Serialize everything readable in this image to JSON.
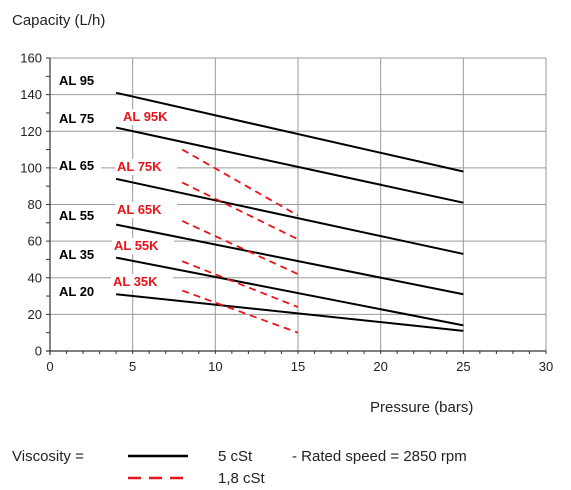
{
  "chart_data": {
    "type": "line",
    "ylabel": "Capacity (L/h)",
    "xlabel": "Pressure (bars)",
    "xlim": [
      0,
      30
    ],
    "ylim": [
      0,
      160
    ],
    "xticks": [
      0,
      5,
      10,
      15,
      20,
      25,
      30
    ],
    "yticks": [
      0,
      20,
      40,
      60,
      80,
      100,
      120,
      140,
      160
    ],
    "grid": true,
    "series": [
      {
        "name": "AL 95",
        "viscosity": "5 cSt",
        "color": "#000000",
        "style": "solid",
        "x": [
          4,
          25
        ],
        "y": [
          141,
          98
        ]
      },
      {
        "name": "AL 75",
        "viscosity": "5 cSt",
        "color": "#000000",
        "style": "solid",
        "x": [
          4,
          25
        ],
        "y": [
          122,
          81
        ]
      },
      {
        "name": "AL 65",
        "viscosity": "5 cSt",
        "color": "#000000",
        "style": "solid",
        "x": [
          4,
          25
        ],
        "y": [
          94,
          53
        ]
      },
      {
        "name": "AL 55",
        "viscosity": "5 cSt",
        "color": "#000000",
        "style": "solid",
        "x": [
          4,
          25
        ],
        "y": [
          69,
          31
        ]
      },
      {
        "name": "AL 35",
        "viscosity": "5 cSt",
        "color": "#000000",
        "style": "solid",
        "x": [
          4,
          25
        ],
        "y": [
          51,
          14
        ]
      },
      {
        "name": "AL 20",
        "viscosity": "5 cSt",
        "color": "#000000",
        "style": "solid",
        "x": [
          4,
          25
        ],
        "y": [
          31,
          11
        ]
      },
      {
        "name": "AL 95K",
        "viscosity": "1,8 cSt",
        "color": "#e8141b",
        "style": "dashed",
        "x": [
          8,
          15
        ],
        "y": [
          110,
          74
        ]
      },
      {
        "name": "AL 75K",
        "viscosity": "1,8 cSt",
        "color": "#e8141b",
        "style": "dashed",
        "x": [
          8,
          15
        ],
        "y": [
          92,
          61
        ]
      },
      {
        "name": "AL 65K",
        "viscosity": "1,8 cSt",
        "color": "#e8141b",
        "style": "dashed",
        "x": [
          8,
          15
        ],
        "y": [
          71,
          42
        ]
      },
      {
        "name": "AL 55K",
        "viscosity": "1,8 cSt",
        "color": "#e8141b",
        "style": "dashed",
        "x": [
          8,
          15
        ],
        "y": [
          49,
          24
        ]
      },
      {
        "name": "AL 35K",
        "viscosity": "1,8 cSt",
        "color": "#e8141b",
        "style": "dashed",
        "x": [
          8,
          15
        ],
        "y": [
          33,
          10
        ]
      }
    ],
    "legend": {
      "label": "Viscosity =",
      "entries": [
        {
          "style": "solid",
          "color": "#000000",
          "text": "5 cSt"
        },
        {
          "style": "dashed",
          "color": "#e8141b",
          "text": "1,8 cSt"
        }
      ],
      "note": "- Rated speed = 2850 rpm"
    }
  }
}
